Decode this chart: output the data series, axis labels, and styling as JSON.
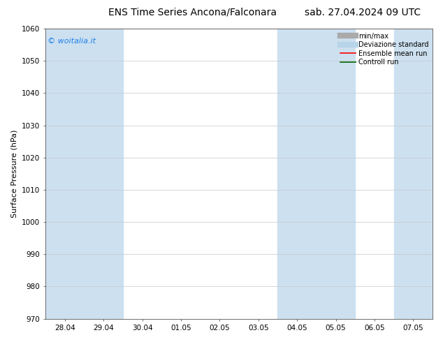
{
  "title_left": "ENS Time Series Ancona/Falconara",
  "title_right": "sab. 27.04.2024 09 UTC",
  "ylabel": "Surface Pressure (hPa)",
  "ylim": [
    970,
    1060
  ],
  "yticks": [
    970,
    980,
    990,
    1000,
    1010,
    1020,
    1030,
    1040,
    1050,
    1060
  ],
  "xtick_labels": [
    "28.04",
    "29.04",
    "30.04",
    "01.05",
    "02.05",
    "03.05",
    "04.05",
    "05.05",
    "06.05",
    "07.05"
  ],
  "n_xticks": 10,
  "shaded_columns": [
    0,
    1,
    6,
    7,
    9
  ],
  "shade_color": "#cce0f0",
  "background_color": "#ffffff",
  "watermark_text": "© woitalia.it",
  "watermark_color": "#1e7fe8",
  "legend_entries": [
    {
      "label": "min/max",
      "color": "#aaaaaa",
      "lw": 6,
      "style": "solid"
    },
    {
      "label": "Deviazione standard",
      "color": "#b8d4e8",
      "lw": 6,
      "style": "solid"
    },
    {
      "label": "Ensemble mean run",
      "color": "#ff0000",
      "lw": 1.2,
      "style": "solid"
    },
    {
      "label": "Controll run",
      "color": "#006600",
      "lw": 1.2,
      "style": "solid"
    }
  ],
  "grid_color": "#c8c8c8",
  "title_fontsize": 10,
  "axis_label_fontsize": 8,
  "tick_fontsize": 7.5,
  "legend_fontsize": 7
}
